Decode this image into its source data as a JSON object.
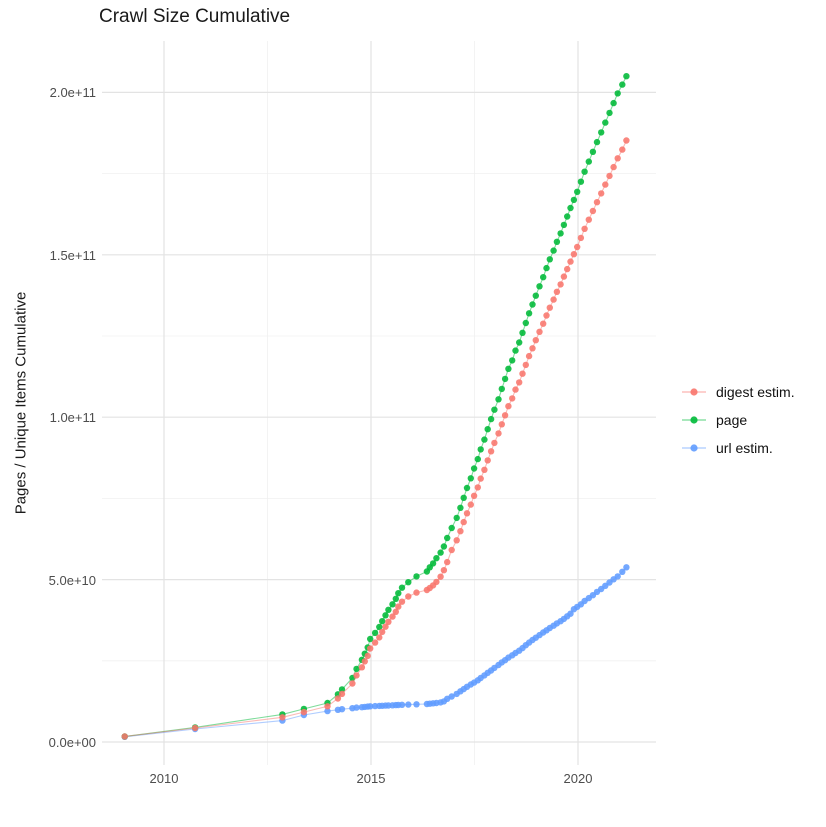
{
  "title": "Crawl Size Cumulative",
  "axes": {
    "y_label": "Pages / Unique Items Cumulative",
    "y_tick_labels": [
      "0.0e+00",
      "5.0e+10",
      "1.0e+11",
      "1.5e+11",
      "2.0e+11"
    ],
    "y_tick_values_billions": [
      0,
      50,
      100,
      150,
      200
    ],
    "y_minor_billions": [
      25,
      75,
      125,
      175
    ],
    "x_tick_labels": [
      "2010",
      "2015",
      "2020"
    ],
    "x_tick_values": [
      2010,
      2015,
      2020
    ],
    "x_minor": [
      2012.5,
      2017.5
    ]
  },
  "legend": {
    "items": [
      {
        "label": "digest estim.",
        "color": "#F8766D"
      },
      {
        "label": "page",
        "color": "#00BA38"
      },
      {
        "label": "url estim.",
        "color": "#619CFF"
      }
    ]
  },
  "chart_data": {
    "type": "line",
    "title": "Crawl Size Cumulative",
    "xlabel": "",
    "ylabel": "Pages / Unique Items Cumulative",
    "values_unit": "billions (1e9) of pages / unique items, cumulative",
    "xlim": [
      2008.5,
      2021.9
    ],
    "ylim_billions": [
      0,
      215
    ],
    "grid": true,
    "legend_position": "right",
    "x": [
      2009.05,
      2010.75,
      2012.86,
      2013.38,
      2013.95,
      2014.2,
      2014.3,
      2014.55,
      2014.65,
      2014.78,
      2014.85,
      2014.92,
      2014.98,
      2015.1,
      2015.2,
      2015.27,
      2015.35,
      2015.42,
      2015.52,
      2015.6,
      2015.66,
      2015.75,
      2015.9,
      2016.1,
      2016.35,
      2016.42,
      2016.5,
      2016.58,
      2016.68,
      2016.76,
      2016.84,
      2016.95,
      2017.07,
      2017.16,
      2017.24,
      2017.32,
      2017.41,
      2017.49,
      2017.58,
      2017.65,
      2017.74,
      2017.82,
      2017.9,
      2017.98,
      2018.08,
      2018.16,
      2018.24,
      2018.32,
      2018.41,
      2018.49,
      2018.58,
      2018.66,
      2018.74,
      2018.82,
      2018.9,
      2018.98,
      2019.07,
      2019.16,
      2019.24,
      2019.32,
      2019.41,
      2019.49,
      2019.58,
      2019.66,
      2019.74,
      2019.82,
      2019.9,
      2019.98,
      2020.07,
      2020.16,
      2020.26,
      2020.36,
      2020.46,
      2020.56,
      2020.66,
      2020.76,
      2020.86,
      2020.96,
      2021.07,
      2021.17
    ],
    "series": [
      {
        "name": "digest estim.",
        "color": "#F8766D",
        "values": [
          1.7,
          4.3,
          7.6,
          9.2,
          11.0,
          13.4,
          14.8,
          18.0,
          20.5,
          23.0,
          24.8,
          26.5,
          28.8,
          30.6,
          32.2,
          33.9,
          35.5,
          37.0,
          38.6,
          40.1,
          41.7,
          43.2,
          44.8,
          46.0,
          46.8,
          47.4,
          48.2,
          49.3,
          50.9,
          52.9,
          55.4,
          59.1,
          62.1,
          64.9,
          67.7,
          70.4,
          73.1,
          75.8,
          78.4,
          81.1,
          83.8,
          86.7,
          89.5,
          92.1,
          95.0,
          97.8,
          100.6,
          103.4,
          105.8,
          108.5,
          110.7,
          113.4,
          116.1,
          118.8,
          121.2,
          123.7,
          126.3,
          128.8,
          131.3,
          133.7,
          136.2,
          138.6,
          140.9,
          143.3,
          145.6,
          147.9,
          150.2,
          152.4,
          155.2,
          158.0,
          160.8,
          163.5,
          166.2,
          168.9,
          171.6,
          174.3,
          177.0,
          179.7,
          182.4,
          185.2
        ]
      },
      {
        "name": "page",
        "color": "#00BA38",
        "values": [
          1.7,
          4.5,
          8.5,
          10.2,
          12.0,
          14.7,
          16.2,
          19.7,
          22.5,
          25.3,
          27.2,
          29.1,
          31.7,
          33.6,
          35.4,
          37.2,
          39.0,
          40.7,
          42.4,
          44.1,
          45.8,
          47.5,
          49.2,
          51.0,
          52.5,
          53.8,
          55.0,
          56.6,
          58.3,
          60.2,
          62.8,
          65.9,
          69.0,
          72.1,
          75.2,
          78.2,
          81.2,
          84.2,
          87.1,
          90.1,
          93.1,
          96.3,
          99.4,
          102.3,
          105.5,
          108.7,
          111.8,
          114.9,
          117.5,
          120.5,
          123.0,
          126.0,
          129.0,
          132.0,
          134.7,
          137.4,
          140.3,
          143.1,
          145.9,
          148.6,
          151.3,
          154.0,
          156.6,
          159.2,
          161.8,
          164.4,
          166.9,
          169.4,
          172.5,
          175.6,
          178.7,
          181.7,
          184.7,
          187.7,
          190.7,
          193.7,
          196.7,
          199.7,
          202.4,
          205.0
        ]
      },
      {
        "name": "url estim.",
        "color": "#619CFF",
        "values": [
          1.6,
          4.0,
          6.6,
          8.3,
          9.5,
          9.9,
          10.1,
          10.4,
          10.6,
          10.7,
          10.8,
          10.9,
          11.0,
          11.05,
          11.1,
          11.15,
          11.2,
          11.25,
          11.3,
          11.35,
          11.4,
          11.45,
          11.5,
          11.6,
          11.7,
          11.8,
          11.9,
          12.0,
          12.2,
          12.5,
          13.3,
          14.0,
          14.8,
          15.6,
          16.3,
          17.0,
          17.7,
          18.3,
          19.0,
          19.7,
          20.5,
          21.3,
          22.0,
          22.8,
          23.7,
          24.5,
          25.2,
          26.0,
          26.7,
          27.4,
          28.1,
          28.9,
          29.8,
          30.6,
          31.4,
          32.1,
          32.9,
          33.7,
          34.4,
          35.1,
          35.8,
          36.5,
          37.2,
          37.9,
          38.7,
          39.5,
          40.9,
          41.6,
          42.4,
          43.4,
          44.3,
          45.2,
          46.2,
          47.1,
          48.1,
          49.1,
          50.1,
          51.0,
          52.4,
          53.8
        ]
      }
    ]
  }
}
